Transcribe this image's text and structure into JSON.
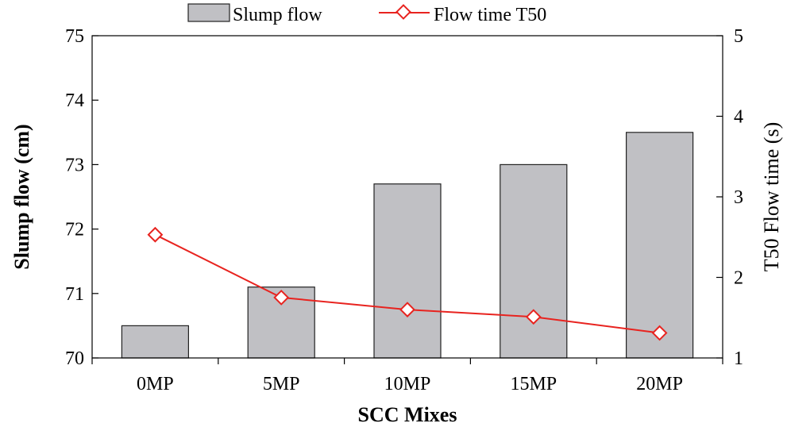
{
  "chart_data": {
    "type": "bar",
    "categories": [
      "0MP",
      "5MP",
      "10MP",
      "15MP",
      "20MP"
    ],
    "series": [
      {
        "name": "Slump flow",
        "type": "bar",
        "axis": "left",
        "values": [
          70.5,
          71.1,
          72.7,
          73.0,
          73.5
        ]
      },
      {
        "name": "Flow time T50",
        "type": "line",
        "axis": "right",
        "values": [
          2.53,
          1.75,
          1.6,
          1.51,
          1.31
        ]
      }
    ],
    "xlabel": "SCC Mixes",
    "ylabel": "Slump flow  (cm)",
    "y2label": "T50 Flow time (s)",
    "ylim": [
      70,
      75
    ],
    "y2lim": [
      1,
      5
    ],
    "yticks": [
      "70",
      "71",
      "72",
      "73",
      "74",
      "75"
    ],
    "y2ticks": [
      "1",
      "2",
      "3",
      "4",
      "5"
    ],
    "grid": false,
    "legend_position": "top",
    "colors": {
      "bar_fill": "#c0c0c4",
      "bar_stroke": "#222222",
      "line": "#e8231f",
      "marker_fill": "#ffffff"
    }
  }
}
